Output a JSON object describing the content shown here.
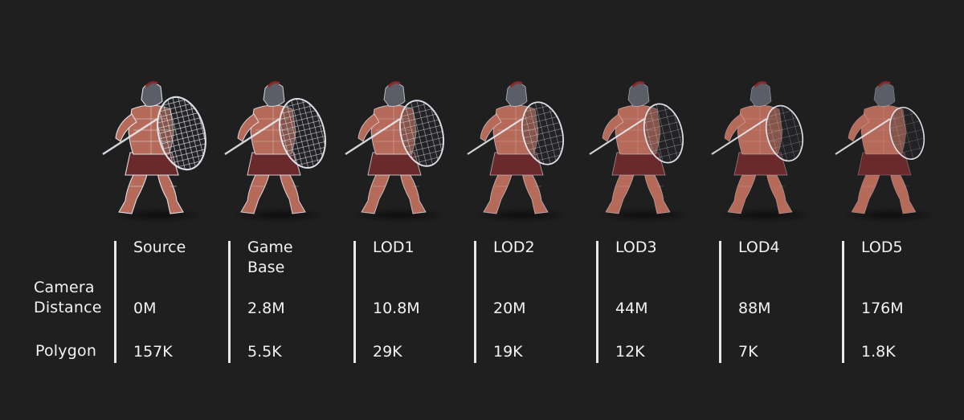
{
  "colors": {
    "background": "#1f1f20",
    "text": "#f2f2f2",
    "wireframe": "#e6eaf0",
    "skin": "#b56a5a",
    "cloth": "#6a2a2c"
  },
  "row_labels": {
    "camera_line1": "Camera",
    "camera_line2": "Distance",
    "polygon": "Polygon"
  },
  "lods": [
    {
      "name": "Source",
      "distance": "0M",
      "polygons": "157K",
      "wire_density": 1.0
    },
    {
      "name": "Game Base",
      "distance": "2.8M",
      "polygons": "5.5K",
      "wire_density": 0.85
    },
    {
      "name": "LOD1",
      "distance": "10.8M",
      "polygons": "29K",
      "wire_density": 0.7
    },
    {
      "name": "LOD2",
      "distance": "20M",
      "polygons": "19K",
      "wire_density": 0.55
    },
    {
      "name": "LOD3",
      "distance": "44M",
      "polygons": "12K",
      "wire_density": 0.4
    },
    {
      "name": "LOD4",
      "distance": "88M",
      "polygons": "7K",
      "wire_density": 0.28
    },
    {
      "name": "LOD5",
      "distance": "176M",
      "polygons": "1.8K",
      "wire_density": 0.15
    }
  ]
}
